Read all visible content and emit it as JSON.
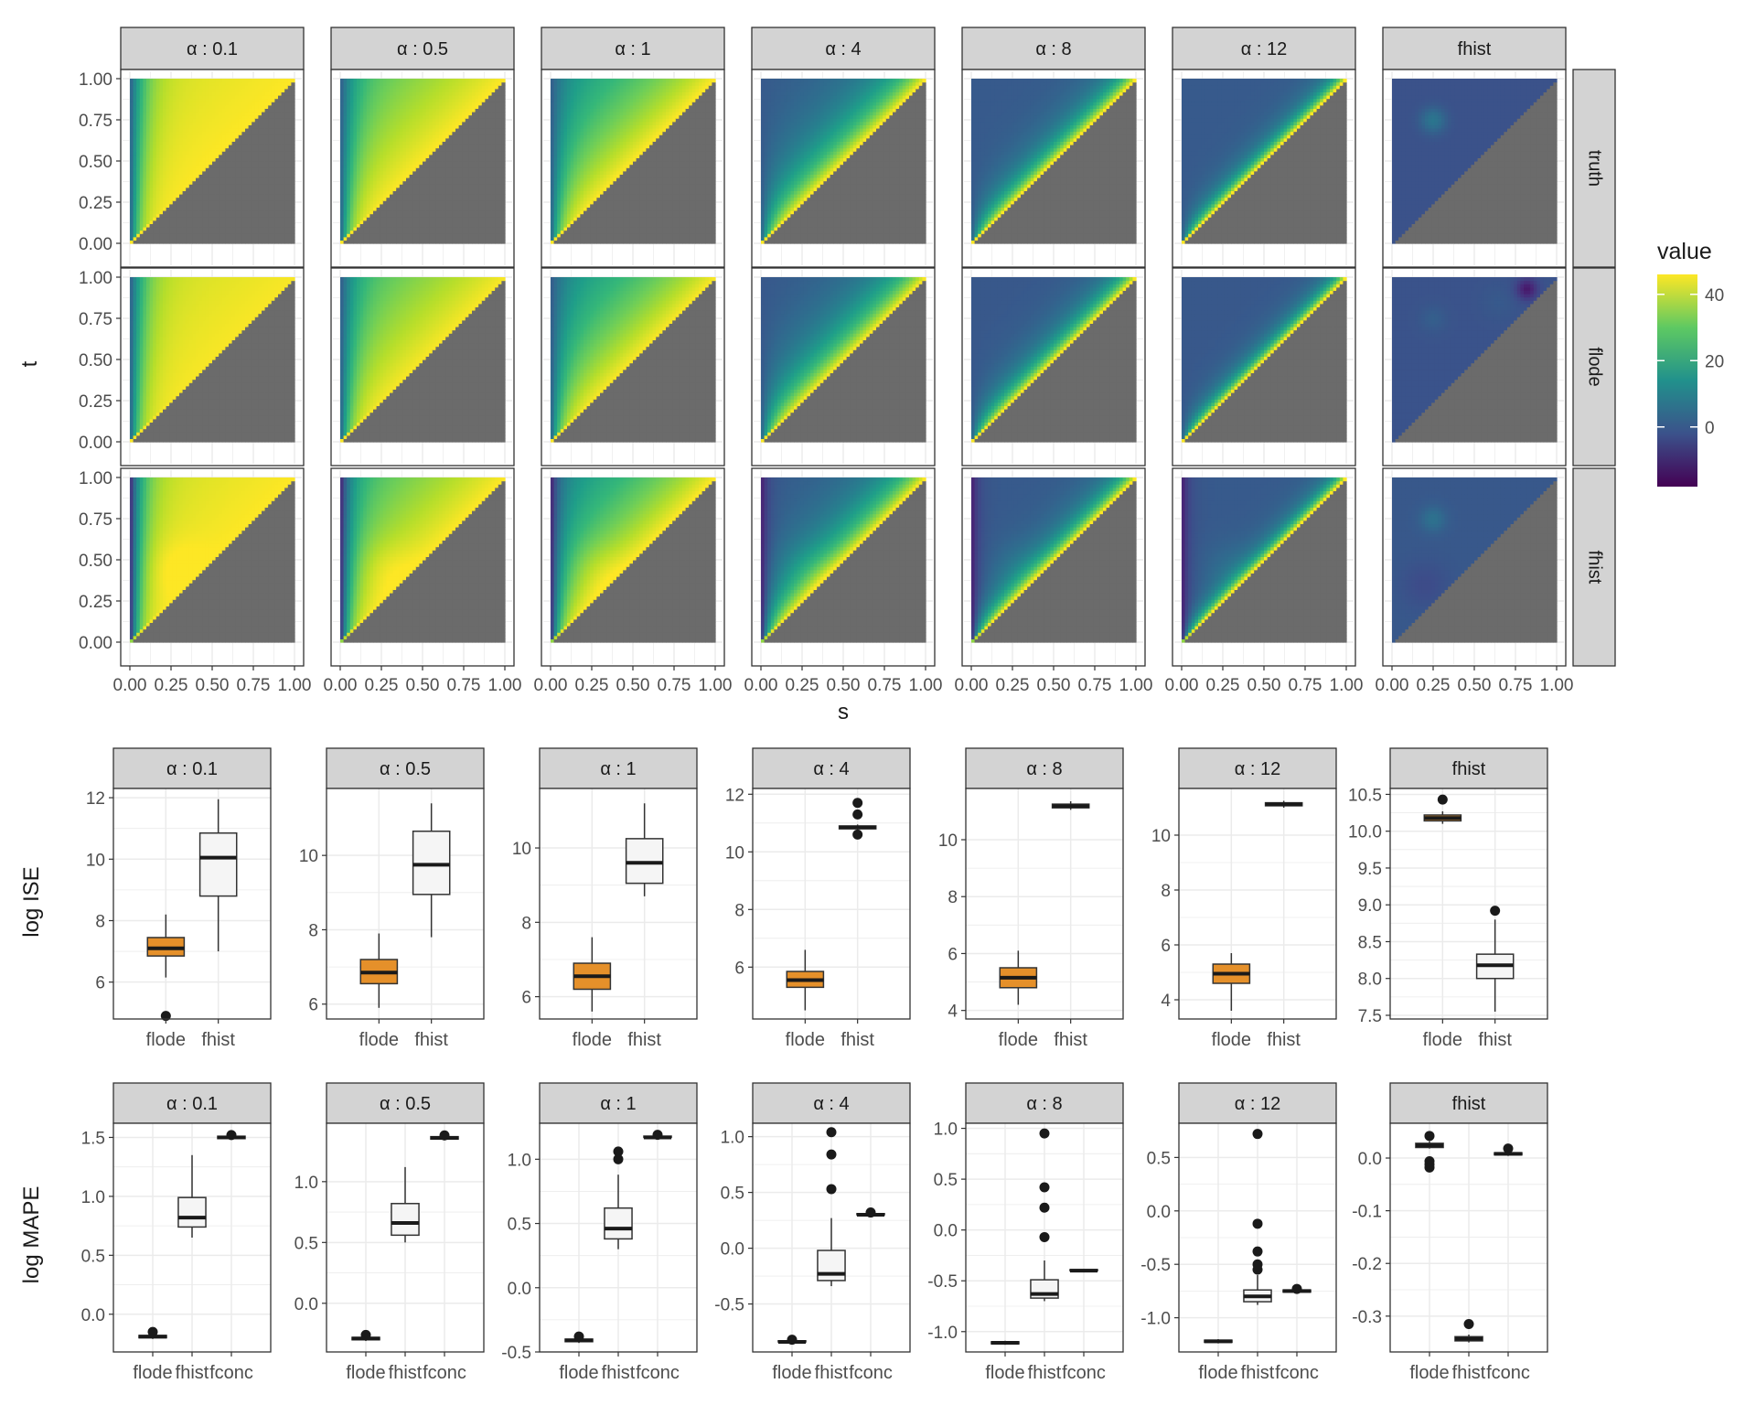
{
  "chart_data": [
    {
      "type": "heatmap",
      "xlabel": "s",
      "ylabel": "t",
      "x_ticks": [
        "0.00",
        "0.25",
        "0.50",
        "0.75",
        "1.00"
      ],
      "y_ticks": [
        "0.00",
        "0.25",
        "0.50",
        "0.75",
        "1.00"
      ],
      "xlim": [
        0,
        1
      ],
      "ylim": [
        0,
        1
      ],
      "columns": [
        "α : 0.1",
        "α : 0.5",
        "α : 1",
        "α : 4",
        "α : 8",
        "α : 12",
        "fhist"
      ],
      "rows": [
        "truth",
        "flode",
        "fhist"
      ],
      "colorbar": {
        "title": "value",
        "ticks": [
          40,
          20,
          0
        ],
        "range": [
          -18,
          46
        ],
        "colors": [
          "#440154",
          "#31688e",
          "#26828e",
          "#35b779",
          "#fde725"
        ]
      },
      "masked_region": "s > t",
      "masked_color": "#6b6b6b"
    },
    {
      "type": "box",
      "ylabel": "log ISE",
      "panels": [
        {
          "title": "α : 0.1",
          "ylim": [
            4.8,
            12.3
          ],
          "ticks": [
            6,
            8,
            10,
            12
          ],
          "tick_labels": [
            "6",
            "8",
            "10",
            "12"
          ],
          "boxes": [
            {
              "category": "flode",
              "whisker_low": 6.15,
              "q1": 6.85,
              "median": 7.1,
              "q3": 7.45,
              "whisker_high": 8.2,
              "outliers": [
                4.9
              ]
            },
            {
              "category": "fhist",
              "whisker_low": 7.0,
              "q1": 8.8,
              "median": 10.05,
              "q3": 10.85,
              "whisker_high": 11.95,
              "outliers": []
            }
          ]
        },
        {
          "title": "α : 0.5",
          "ylim": [
            5.6,
            11.8
          ],
          "ticks": [
            6,
            8,
            10
          ],
          "tick_labels": [
            "6",
            "8",
            "10"
          ],
          "boxes": [
            {
              "category": "flode",
              "whisker_low": 5.9,
              "q1": 6.55,
              "median": 6.85,
              "q3": 7.2,
              "whisker_high": 7.9,
              "outliers": []
            },
            {
              "category": "fhist",
              "whisker_low": 7.8,
              "q1": 8.95,
              "median": 9.75,
              "q3": 10.65,
              "whisker_high": 11.4,
              "outliers": []
            }
          ]
        },
        {
          "title": "α : 1",
          "ylim": [
            5.4,
            11.6
          ],
          "ticks": [
            6,
            8,
            10
          ],
          "tick_labels": [
            "6",
            "8",
            "10"
          ],
          "boxes": [
            {
              "category": "flode",
              "whisker_low": 5.6,
              "q1": 6.2,
              "median": 6.55,
              "q3": 6.9,
              "whisker_high": 7.6,
              "outliers": []
            },
            {
              "category": "fhist",
              "whisker_low": 8.7,
              "q1": 9.05,
              "median": 9.6,
              "q3": 10.25,
              "whisker_high": 11.2,
              "outliers": []
            }
          ]
        },
        {
          "title": "α : 4",
          "ylim": [
            4.2,
            12.2
          ],
          "ticks": [
            6,
            8,
            10,
            12
          ],
          "tick_labels": [
            "6",
            "8",
            "10",
            "12"
          ],
          "boxes": [
            {
              "category": "flode",
              "whisker_low": 4.5,
              "q1": 5.3,
              "median": 5.55,
              "q3": 5.85,
              "whisker_high": 6.6,
              "outliers": []
            },
            {
              "category": "fhist",
              "whisker_low": 10.75,
              "q1": 10.8,
              "median": 10.85,
              "q3": 10.9,
              "whisker_high": 10.95,
              "outliers": [
                10.6,
                11.3,
                11.7
              ]
            }
          ]
        },
        {
          "title": "α : 8",
          "ylim": [
            3.7,
            11.8
          ],
          "ticks": [
            4,
            6,
            8,
            10
          ],
          "tick_labels": [
            "4",
            "6",
            "8",
            "10"
          ],
          "boxes": [
            {
              "category": "flode",
              "whisker_low": 4.2,
              "q1": 4.8,
              "median": 5.15,
              "q3": 5.5,
              "whisker_high": 6.1,
              "outliers": []
            },
            {
              "category": "fhist",
              "whisker_low": 11.05,
              "q1": 11.12,
              "median": 11.18,
              "q3": 11.25,
              "whisker_high": 11.35,
              "outliers": []
            }
          ]
        },
        {
          "title": "α : 12",
          "ylim": [
            3.3,
            11.7
          ],
          "ticks": [
            4,
            6,
            8,
            10
          ],
          "tick_labels": [
            "4",
            "6",
            "8",
            "10"
          ],
          "boxes": [
            {
              "category": "flode",
              "whisker_low": 3.6,
              "q1": 4.6,
              "median": 4.95,
              "q3": 5.3,
              "whisker_high": 5.7,
              "outliers": []
            },
            {
              "category": "fhist",
              "whisker_low": 11.0,
              "q1": 11.07,
              "median": 11.12,
              "q3": 11.18,
              "whisker_high": 11.25,
              "outliers": []
            }
          ]
        },
        {
          "title": "fhist",
          "ylim": [
            7.45,
            10.58
          ],
          "ticks": [
            7.5,
            8.0,
            8.5,
            9.0,
            9.5,
            10.0,
            10.5
          ],
          "tick_labels": [
            "7.5",
            "8.0",
            "8.5",
            "9.0",
            "9.5",
            "10.0",
            "10.5"
          ],
          "boxes": [
            {
              "category": "flode",
              "whisker_low": 10.1,
              "q1": 10.14,
              "median": 10.18,
              "q3": 10.22,
              "whisker_high": 10.27,
              "outliers": [
                10.43
              ]
            },
            {
              "category": "fhist",
              "whisker_low": 7.55,
              "q1": 8.0,
              "median": 8.18,
              "q3": 8.33,
              "whisker_high": 8.8,
              "outliers": [
                8.92
              ]
            }
          ]
        }
      ]
    },
    {
      "type": "box",
      "ylabel": "log MAPE",
      "panels": [
        {
          "title": "α : 0.1",
          "ylim": [
            -0.32,
            1.62
          ],
          "ticks": [
            0.0,
            0.5,
            1.0,
            1.5
          ],
          "tick_labels": [
            "0.0",
            "0.5",
            "1.0",
            "1.5"
          ],
          "boxes": [
            {
              "category": "flode",
              "whisker_low": -0.21,
              "q1": -0.2,
              "median": -0.19,
              "q3": -0.18,
              "whisker_high": -0.17,
              "outliers": [
                -0.15
              ]
            },
            {
              "category": "fhist",
              "whisker_low": 0.65,
              "q1": 0.74,
              "median": 0.82,
              "q3": 0.99,
              "whisker_high": 1.35,
              "outliers": []
            },
            {
              "category": "fconc",
              "whisker_low": 1.48,
              "q1": 1.49,
              "median": 1.5,
              "q3": 1.51,
              "whisker_high": 1.52,
              "outliers": [
                1.52
              ]
            }
          ]
        },
        {
          "title": "α : 0.5",
          "ylim": [
            -0.4,
            1.48
          ],
          "ticks": [
            0.0,
            0.5,
            1.0
          ],
          "tick_labels": [
            "0.0",
            "0.5",
            "1.0"
          ],
          "boxes": [
            {
              "category": "flode",
              "whisker_low": -0.31,
              "q1": -0.3,
              "median": -0.29,
              "q3": -0.28,
              "whisker_high": -0.27,
              "outliers": [
                -0.26
              ]
            },
            {
              "category": "fhist",
              "whisker_low": 0.5,
              "q1": 0.56,
              "median": 0.66,
              "q3": 0.82,
              "whisker_high": 1.12,
              "outliers": []
            },
            {
              "category": "fconc",
              "whisker_low": 1.34,
              "q1": 1.35,
              "median": 1.36,
              "q3": 1.37,
              "whisker_high": 1.38,
              "outliers": [
                1.38
              ]
            }
          ]
        },
        {
          "title": "α : 1",
          "ylim": [
            -0.5,
            1.28
          ],
          "ticks": [
            -0.5,
            0.0,
            0.5,
            1.0
          ],
          "tick_labels": [
            "-0.5",
            "0.0",
            "0.5",
            "1.0"
          ],
          "boxes": [
            {
              "category": "flode",
              "whisker_low": -0.43,
              "q1": -0.42,
              "median": -0.41,
              "q3": -0.4,
              "whisker_high": -0.39,
              "outliers": [
                -0.38
              ]
            },
            {
              "category": "fhist",
              "whisker_low": 0.3,
              "q1": 0.38,
              "median": 0.46,
              "q3": 0.62,
              "whisker_high": 0.88,
              "outliers": [
                1.0,
                1.06
              ]
            },
            {
              "category": "fconc",
              "whisker_low": 1.16,
              "q1": 1.17,
              "median": 1.17,
              "q3": 1.18,
              "whisker_high": 1.19,
              "outliers": [
                1.19
              ]
            }
          ]
        },
        {
          "title": "α : 4",
          "ylim": [
            -0.93,
            1.12
          ],
          "ticks": [
            -0.5,
            0.0,
            0.5,
            1.0
          ],
          "tick_labels": [
            "-0.5",
            "0.0",
            "0.5",
            "1.0"
          ],
          "boxes": [
            {
              "category": "flode",
              "whisker_low": -0.85,
              "q1": -0.84,
              "median": -0.84,
              "q3": -0.83,
              "whisker_high": -0.82,
              "outliers": [
                -0.82
              ]
            },
            {
              "category": "fhist",
              "whisker_low": -0.34,
              "q1": -0.29,
              "median": -0.23,
              "q3": -0.02,
              "whisker_high": 0.27,
              "outliers": [
                0.53,
                0.84,
                1.04
              ]
            },
            {
              "category": "fconc",
              "whisker_low": 0.29,
              "q1": 0.3,
              "median": 0.3,
              "q3": 0.31,
              "whisker_high": 0.32,
              "outliers": [
                0.32
              ]
            }
          ]
        },
        {
          "title": "α : 8",
          "ylim": [
            -1.2,
            1.05
          ],
          "ticks": [
            -1.0,
            -0.5,
            0.0,
            0.5,
            1.0
          ],
          "tick_labels": [
            "-1.0",
            "-0.5",
            "0.0",
            "0.5",
            "1.0"
          ],
          "boxes": [
            {
              "category": "flode",
              "whisker_low": -1.13,
              "q1": -1.12,
              "median": -1.11,
              "q3": -1.1,
              "whisker_high": -1.09,
              "outliers": []
            },
            {
              "category": "fhist",
              "whisker_low": -0.7,
              "q1": -0.67,
              "median": -0.63,
              "q3": -0.49,
              "whisker_high": -0.3,
              "outliers": [
                -0.07,
                0.22,
                0.42,
                0.95
              ]
            },
            {
              "category": "fconc",
              "whisker_low": -0.41,
              "q1": -0.4,
              "median": -0.4,
              "q3": -0.39,
              "whisker_high": -0.39,
              "outliers": []
            }
          ]
        },
        {
          "title": "α : 12",
          "ylim": [
            -1.32,
            0.82
          ],
          "ticks": [
            -1.0,
            -0.5,
            0.0,
            0.5
          ],
          "tick_labels": [
            "-1.0",
            "-0.5",
            "0.0",
            "0.5"
          ],
          "boxes": [
            {
              "category": "flode",
              "whisker_low": -1.24,
              "q1": -1.23,
              "median": -1.22,
              "q3": -1.21,
              "whisker_high": -1.2,
              "outliers": []
            },
            {
              "category": "fhist",
              "whisker_low": -0.88,
              "q1": -0.85,
              "median": -0.8,
              "q3": -0.74,
              "whisker_high": -0.6,
              "outliers": [
                -0.55,
                -0.5,
                -0.38,
                -0.12,
                0.72
              ]
            },
            {
              "category": "fconc",
              "whisker_low": -0.77,
              "q1": -0.76,
              "median": -0.75,
              "q3": -0.74,
              "whisker_high": -0.73,
              "outliers": [
                -0.73
              ]
            }
          ]
        },
        {
          "title": "fhist",
          "ylim": [
            -0.368,
            0.066
          ],
          "ticks": [
            0.0,
            -0.1,
            -0.2,
            -0.3
          ],
          "tick_labels": [
            "0.0",
            "-0.1",
            "-0.2",
            "-0.3"
          ],
          "boxes": [
            {
              "category": "flode",
              "whisker_low": 0.018,
              "q1": 0.02,
              "median": 0.024,
              "q3": 0.028,
              "whisker_high": 0.032,
              "outliers": [
                -0.006,
                -0.012,
                -0.018,
                0.042
              ]
            },
            {
              "category": "fhist",
              "whisker_low": -0.35,
              "q1": -0.347,
              "median": -0.343,
              "q3": -0.339,
              "whisker_high": -0.335,
              "outliers": [
                -0.315
              ]
            },
            {
              "category": "fconc",
              "whisker_low": 0.004,
              "q1": 0.006,
              "median": 0.008,
              "q3": 0.01,
              "whisker_high": 0.012,
              "outliers": [
                0.018
              ]
            }
          ]
        }
      ]
    }
  ],
  "colors": {
    "strip_fill": "#d3d3d3",
    "strip_border": "#333333",
    "grid": "#ebebeb",
    "flode_box_fill": "#e5902a",
    "other_box_fill": "#f5f5f5",
    "masked": "#6b6b6b"
  }
}
